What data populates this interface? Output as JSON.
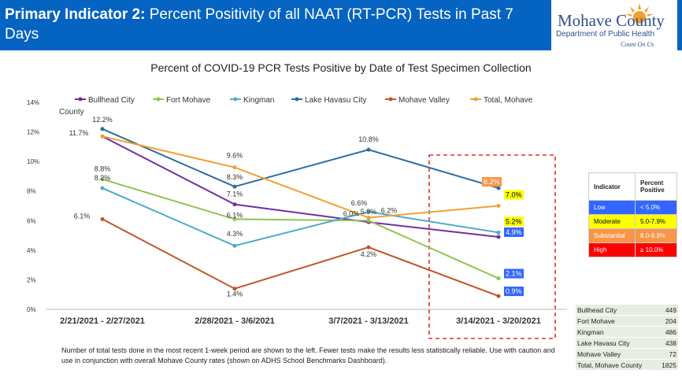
{
  "header": {
    "title_bold": "Primary Indicator 2:",
    "title_rest": " Percent Positivity of all NAAT (RT-PCR) Tests in Past 7 Days",
    "logo_name": "Mohave County",
    "logo_dept": "Department of Public Health",
    "logo_tagline": "Count On Us"
  },
  "chart_data": {
    "type": "line",
    "title": "Percent of COVID-19 PCR Tests Positive by Date of Test Specimen Collection",
    "legend_title": "County",
    "categories": [
      "2/21/2021 - 2/27/2021",
      "2/28/2021 - 3/6/2021",
      "3/7/2021 - 3/13/2021",
      "3/14/2021 - 3/20/2021"
    ],
    "yticks": [
      "0%",
      "2%",
      "4%",
      "6%",
      "8%",
      "10%",
      "12%",
      "14%"
    ],
    "ylim": [
      0,
      14
    ],
    "series": [
      {
        "name": "Bullhead City",
        "color": "#7030a0",
        "values": [
          11.7,
          7.1,
          5.9,
          4.9
        ],
        "labels": [
          "",
          "7.1%",
          "5.9%",
          "4.9%"
        ]
      },
      {
        "name": "Fort Mohave",
        "color": "#92c353",
        "values": [
          8.8,
          6.1,
          6.0,
          2.1
        ],
        "labels": [
          "8.8%",
          "6.1%",
          "6.0%",
          "2.1%"
        ]
      },
      {
        "name": "Kingman",
        "color": "#4bacc6",
        "values": [
          8.2,
          4.3,
          6.6,
          5.2
        ],
        "labels": [
          "8.2%",
          "4.3%",
          "6.6%",
          "5.2%"
        ]
      },
      {
        "name": "Lake Havasu City",
        "color": "#2e6c9c",
        "values": [
          12.2,
          8.3,
          10.8,
          8.2
        ],
        "labels": [
          "12.2%",
          "8.3%",
          "10.8%",
          "8.2%"
        ]
      },
      {
        "name": "Mohave Valley",
        "color": "#c0562a",
        "values": [
          6.1,
          1.4,
          4.2,
          0.9
        ],
        "labels": [
          "6.1%",
          "1.4%",
          "4.2%",
          "0.9%"
        ]
      },
      {
        "name": "Total, Mohave",
        "color": "#f0a030",
        "values": [
          11.7,
          9.6,
          6.2,
          7.0
        ],
        "labels": [
          "11.7%",
          "9.6%",
          "6.2%",
          "7.0%"
        ]
      }
    ]
  },
  "indicator_table": {
    "headers": [
      "Indicator",
      "Percent Positive"
    ],
    "rows": [
      {
        "label": "Low",
        "range": "< 5.0%",
        "color": "#3366ff",
        "text": "#ffffff"
      },
      {
        "label": "Moderate",
        "range": "5.0-7.9%",
        "color": "#ffff00",
        "text": "#000000"
      },
      {
        "label": "Substantial",
        "range": "8.0-9.9%",
        "color": "#f79646",
        "text": "#ffffff"
      },
      {
        "label": "High",
        "range": "≥ 10.0%",
        "color": "#ff0000",
        "text": "#ffffff"
      }
    ]
  },
  "counts_table": [
    {
      "name": "Bullhead City",
      "count": "449"
    },
    {
      "name": "Fort Mohave",
      "count": "204"
    },
    {
      "name": "Kingman",
      "count": "486"
    },
    {
      "name": "Lake Havasu City",
      "count": "438"
    },
    {
      "name": "Mohave Valley",
      "count": "72"
    },
    {
      "name": "Total, Mohave County",
      "count": "1825"
    }
  ],
  "footnote": "Number of total tests done in the most recent 1-week period are shown to the left.  Fewer tests make the results less statistically reliable.  Use with caution and use in conjunction with overall Mohave County rates (shown on ADHS School Benchmarks Dashboard)."
}
